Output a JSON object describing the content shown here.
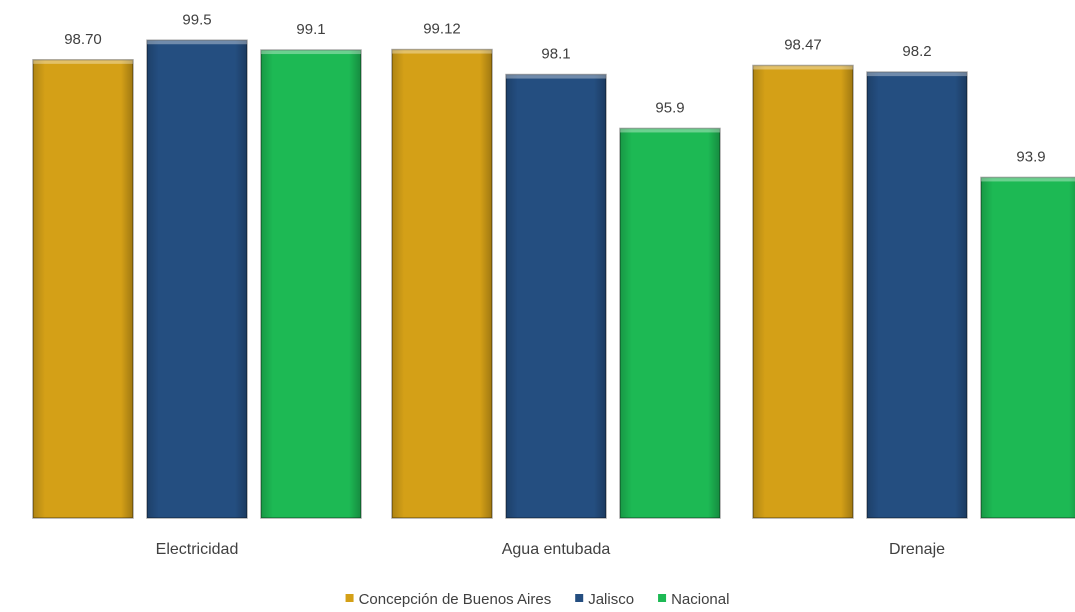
{
  "chart_data": {
    "type": "bar",
    "categories": [
      "Electricidad",
      "Agua entubada",
      "Drenaje"
    ],
    "series": [
      {
        "name": "Concepción de Buenos Aires",
        "values": [
          98.7,
          99.12,
          98.47
        ],
        "labels": [
          "98.70",
          "99.12",
          "98.47"
        ],
        "color": "#D4A017"
      },
      {
        "name": "Jalisco",
        "values": [
          99.5,
          98.1,
          98.2
        ],
        "labels": [
          "99.5",
          "98.1",
          "98.2"
        ],
        "color": "#244E80"
      },
      {
        "name": "Nacional",
        "values": [
          99.1,
          95.9,
          93.9
        ],
        "labels": [
          "99.1",
          "95.9",
          "93.9"
        ],
        "color": "#1DB954"
      }
    ],
    "title": "",
    "xlabel": "",
    "ylabel": "",
    "ylim": [
      80,
      100
    ],
    "grid": false,
    "legend_position": "bottom"
  }
}
